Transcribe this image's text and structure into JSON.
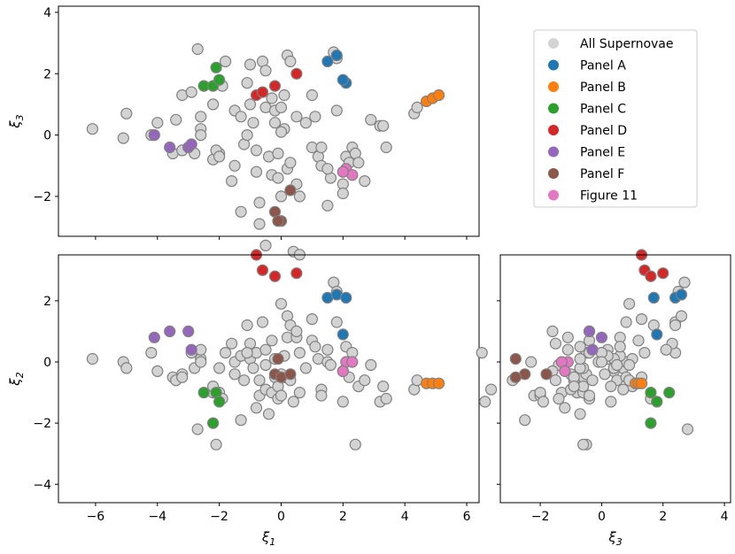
{
  "chart_data": {
    "type": "scatter",
    "legend": {
      "placement": "right of top panel",
      "entries": [
        {
          "label": "All Supernovae",
          "color": "#d3d3d3"
        },
        {
          "label": "Panel A",
          "color": "#1f77b4"
        },
        {
          "label": "Panel B",
          "color": "#ff7f0e"
        },
        {
          "label": "Panel C",
          "color": "#2ca02c"
        },
        {
          "label": "Panel D",
          "color": "#d62728"
        },
        {
          "label": "Panel E",
          "color": "#9467bd"
        },
        {
          "label": "Panel F",
          "color": "#8c564b"
        },
        {
          "label": "Figure 11",
          "color": "#e377c2"
        }
      ]
    },
    "panels": [
      {
        "id": "top",
        "x_var": "xi1",
        "y_var": "xi3",
        "xlabel": "",
        "ylabel": "ξ3",
        "xlim": [
          -7.2,
          6.4
        ],
        "ylim": [
          -3.3,
          4.2
        ],
        "xticks": [
          -6,
          -4,
          -2,
          0,
          2,
          4,
          6
        ],
        "xtick_labels_visible": false,
        "yticks": [
          -2,
          0,
          2,
          4
        ],
        "ytick_labels": [
          "−2",
          "0",
          "2",
          "4"
        ]
      },
      {
        "id": "bottom-left",
        "x_var": "xi1",
        "y_var": "xi2",
        "xlabel": "ξ1",
        "ylabel": "ξ2",
        "xlim": [
          -7.2,
          6.4
        ],
        "ylim": [
          -4.6,
          3.5
        ],
        "xticks": [
          -6,
          -4,
          -2,
          0,
          2,
          4,
          6
        ],
        "xtick_labels": [
          "−6",
          "−4",
          "−2",
          "0",
          "2",
          "4",
          "6"
        ],
        "yticks": [
          -4,
          -2,
          0,
          2
        ],
        "ytick_labels": [
          "−4",
          "−2",
          "0",
          "2"
        ]
      },
      {
        "id": "bottom-right",
        "x_var": "xi3",
        "y_var": "xi2",
        "xlabel": "ξ3",
        "ylabel": "",
        "xlim": [
          -3.3,
          4.2
        ],
        "ylim": [
          -4.6,
          3.5
        ],
        "xticks": [
          -2,
          0,
          2,
          4
        ],
        "xtick_labels": [
          "−2",
          "0",
          "2",
          "4"
        ],
        "yticks": [
          -4,
          -2,
          0,
          2
        ],
        "ytick_labels_visible": false
      }
    ],
    "groups": [
      {
        "name": "All Supernovae",
        "color": "#d3d3d3",
        "points": [
          [
            -6.1,
            0.1,
            0.2
          ],
          [
            -5.1,
            0.0,
            -0.1
          ],
          [
            -5.0,
            -0.2,
            0.7
          ],
          [
            -4.2,
            0.3,
            0.0
          ],
          [
            -4.0,
            -0.3,
            0.4
          ],
          [
            -3.5,
            -0.5,
            -0.6
          ],
          [
            -3.2,
            -0.4,
            -0.5
          ],
          [
            -3.4,
            -0.6,
            0.5
          ],
          [
            -3.2,
            -0.5,
            1.3
          ],
          [
            -2.9,
            0.3,
            1.4
          ],
          [
            -2.6,
            0.1,
            0.6
          ],
          [
            -2.6,
            0.4,
            0.2
          ],
          [
            -2.8,
            -0.2,
            -0.6
          ],
          [
            -2.7,
            -2.2,
            2.8
          ],
          [
            -2.2,
            -1.0,
            -0.8
          ],
          [
            -2.2,
            -0.8,
            1.0
          ],
          [
            -2.0,
            -1.0,
            -0.6
          ],
          [
            -2.1,
            -2.7,
            -0.5
          ],
          [
            -2.0,
            -0.2,
            -0.7
          ],
          [
            -1.9,
            -1.2,
            1.6
          ],
          [
            -1.8,
            0.3,
            2.4
          ],
          [
            -1.6,
            0.6,
            -1.5
          ],
          [
            -1.5,
            -0.4,
            -1.0
          ],
          [
            -1.5,
            0.0,
            0.8
          ],
          [
            -1.3,
            -1.9,
            -2.5
          ],
          [
            -1.3,
            0.2,
            0.6
          ],
          [
            -1.2,
            -0.6,
            -0.3
          ],
          [
            -1.1,
            1.2,
            1.7
          ],
          [
            -1.0,
            0.6,
            2.3
          ],
          [
            -1.0,
            0.1,
            1.0
          ],
          [
            -0.9,
            -0.2,
            0.4
          ],
          [
            -0.8,
            0.3,
            -0.5
          ],
          [
            -0.8,
            -1.5,
            -1.2
          ],
          [
            -0.7,
            -1.1,
            -2.2
          ],
          [
            -0.7,
            -0.6,
            -2.9
          ],
          [
            -0.6,
            1.3,
            2.4
          ],
          [
            -0.5,
            -0.9,
            -3.6
          ],
          [
            -0.5,
            0.4,
            2.1
          ],
          [
            -0.5,
            -0.1,
            0.9
          ],
          [
            -0.4,
            -1.7,
            -0.7
          ],
          [
            -0.3,
            -1.0,
            -1.3
          ],
          [
            -0.3,
            0.7,
            1.2
          ],
          [
            -0.2,
            0.1,
            0.4
          ],
          [
            -0.2,
            -0.5,
            0.8
          ],
          [
            -0.1,
            -1.2,
            -1.4
          ],
          [
            -0.1,
            -0.8,
            -0.6
          ],
          [
            0.0,
            1.9,
            0.9
          ],
          [
            0.0,
            -1.1,
            -2.0
          ],
          [
            0.1,
            0.2,
            0.2
          ],
          [
            0.1,
            -0.5,
            1.3
          ],
          [
            0.2,
            0.8,
            -1.1
          ],
          [
            0.2,
            1.5,
            2.6
          ],
          [
            0.3,
            -0.6,
            -0.9
          ],
          [
            0.3,
            1.2,
            2.4
          ],
          [
            0.4,
            -1.3,
            -3.8
          ],
          [
            0.5,
            0.8,
            0.6
          ],
          [
            0.5,
            1.0,
            -1.6
          ],
          [
            0.6,
            0.3,
            -3.9
          ],
          [
            0.6,
            -1.0,
            -2.0
          ],
          [
            0.8,
            -0.2,
            0.4
          ],
          [
            1.0,
            1.4,
            1.3
          ],
          [
            1.0,
            0.7,
            -0.4
          ],
          [
            1.1,
            0.5,
            0.6
          ],
          [
            1.2,
            0.1,
            -0.7
          ],
          [
            1.3,
            -0.9,
            -1.0
          ],
          [
            1.5,
            0.0,
            -2.3
          ],
          [
            1.6,
            -0.1,
            -1.4
          ],
          [
            1.7,
            2.6,
            2.7
          ],
          [
            1.8,
            1.3,
            0.8
          ],
          [
            1.8,
            2.3,
            2.5
          ],
          [
            2.0,
            -0.3,
            -1.6
          ],
          [
            2.1,
            0.5,
            -0.7
          ],
          [
            2.0,
            -1.3,
            -1.9
          ],
          [
            2.2,
            -0.5,
            -0.9
          ],
          [
            2.3,
            0.3,
            -0.4
          ],
          [
            2.4,
            -2.7,
            -0.6
          ],
          [
            2.5,
            -0.8,
            -0.9
          ],
          [
            2.7,
            -0.6,
            -1.5
          ],
          [
            2.9,
            -0.1,
            0.5
          ],
          [
            3.2,
            -1.3,
            0.3
          ],
          [
            3.3,
            -0.8,
            0.3
          ],
          [
            3.4,
            -1.2,
            -0.4
          ],
          [
            4.3,
            -0.9,
            0.7
          ],
          [
            4.4,
            -0.6,
            0.9
          ],
          [
            -1.1,
            0.3,
            0.0
          ],
          [
            0.0,
            -0.4,
            0.1
          ],
          [
            1.3,
            -1.1,
            -0.4
          ],
          [
            -2.6,
            0.0,
            0.0
          ],
          [
            1.5,
            0.4,
            -1.1
          ]
        ]
      },
      {
        "name": "Panel A",
        "color": "#1f77b4",
        "points": [
          [
            1.5,
            2.1,
            2.4
          ],
          [
            1.8,
            2.2,
            2.6
          ],
          [
            2.1,
            2.1,
            1.7
          ],
          [
            2.0,
            0.9,
            1.8
          ]
        ]
      },
      {
        "name": "Panel B",
        "color": "#ff7f0e",
        "points": [
          [
            4.7,
            -0.7,
            1.1
          ],
          [
            4.9,
            -0.7,
            1.2
          ],
          [
            5.1,
            -0.7,
            1.3
          ]
        ]
      },
      {
        "name": "Panel C",
        "color": "#2ca02c",
        "points": [
          [
            -2.5,
            -1.0,
            1.6
          ],
          [
            -2.2,
            -2.0,
            1.6
          ],
          [
            -2.1,
            -1.0,
            2.2
          ],
          [
            -2.0,
            -1.3,
            1.8
          ]
        ]
      },
      {
        "name": "Panel D",
        "color": "#d62728",
        "points": [
          [
            -0.8,
            3.5,
            1.3
          ],
          [
            -0.6,
            3.0,
            1.4
          ],
          [
            -0.2,
            2.8,
            1.6
          ],
          [
            0.5,
            2.9,
            2.0
          ]
        ]
      },
      {
        "name": "Panel E",
        "color": "#9467bd",
        "points": [
          [
            -4.1,
            0.8,
            0.0
          ],
          [
            -3.6,
            1.0,
            -0.4
          ],
          [
            -3.0,
            1.0,
            -0.4
          ],
          [
            -2.9,
            0.4,
            -0.3
          ]
        ]
      },
      {
        "name": "Panel F",
        "color": "#8c564b",
        "points": [
          [
            -0.2,
            -0.4,
            -2.5
          ],
          [
            0.0,
            -0.5,
            -2.8
          ],
          [
            -0.1,
            0.1,
            -2.8
          ],
          [
            0.3,
            -0.4,
            -1.8
          ]
        ]
      },
      {
        "name": "Figure 11",
        "color": "#e377c2",
        "points": [
          [
            2.1,
            0.0,
            -1.1
          ],
          [
            2.3,
            0.0,
            -1.3
          ],
          [
            2.0,
            -0.3,
            -1.2
          ]
        ]
      }
    ]
  }
}
